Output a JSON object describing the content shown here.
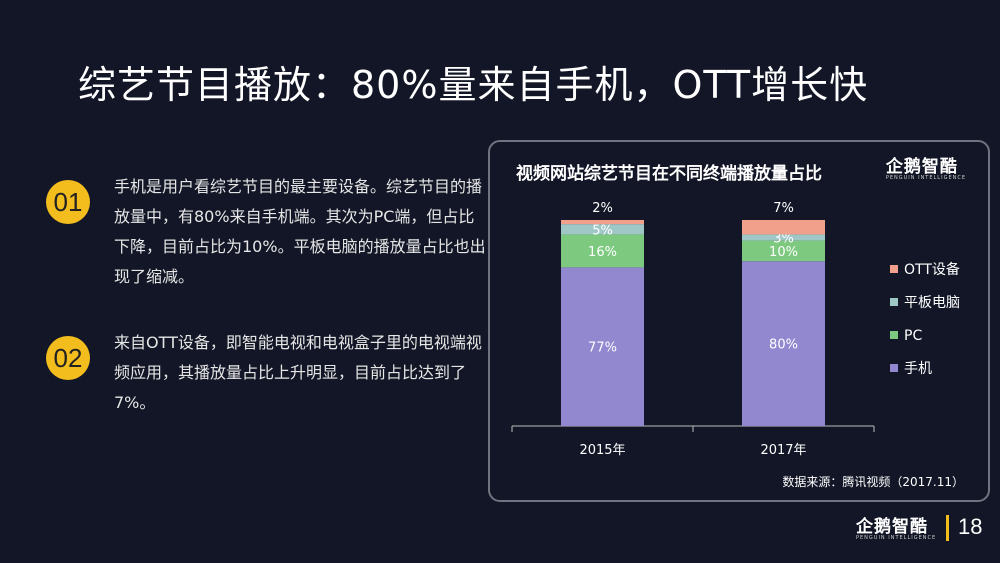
{
  "slide": {
    "title": "综艺节目播放：80%量来自手机，OTT增长快",
    "page_number": "18"
  },
  "points": [
    {
      "number": "01",
      "text": "手机是用户看综艺节目的最主要设备。综艺节目的播放量中，有80%来自手机端。其次为PC端，但占比下降，目前占比为10%。平板电脑的播放量占比也出现了缩减。"
    },
    {
      "number": "02",
      "text": "来自OTT设备，即智能电视和电视盒子里的电视端视频应用，其播放量占比上升明显，目前占比达到了7%。"
    }
  ],
  "brand": {
    "name": "企鹅智酷",
    "tagline": "PENGUIN INTELLIGENCE"
  },
  "chart": {
    "source": "数据来源：腾讯视频（2017.11）"
  },
  "chart_data": {
    "type": "bar",
    "stacked": true,
    "title": "视频网站综艺节目在不同终端播放量占比",
    "categories": [
      "2015年",
      "2017年"
    ],
    "series": [
      {
        "name": "手机",
        "values": [
          77,
          80
        ],
        "labels": [
          "77%",
          "80%"
        ],
        "color": "#9188d0"
      },
      {
        "name": "PC",
        "values": [
          16,
          10
        ],
        "labels": [
          "16%",
          "10%"
        ],
        "color": "#7dc97f"
      },
      {
        "name": "平板电脑",
        "values": [
          5,
          3
        ],
        "labels": [
          "5%",
          "3%"
        ],
        "color": "#9fc7c6"
      },
      {
        "name": "OTT设备",
        "values": [
          2,
          7
        ],
        "labels": [
          "2%",
          "7%"
        ],
        "color": "#f0a08b"
      }
    ],
    "ylim": [
      0,
      100
    ],
    "grid": false,
    "legend_position": "right"
  }
}
